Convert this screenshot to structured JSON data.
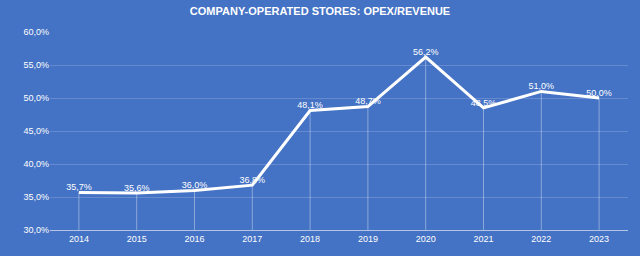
{
  "chart_data": {
    "type": "line",
    "title": "COMPANY-OPERATED STORES: OPEX/REVENUE",
    "categories": [
      "2014",
      "2015",
      "2016",
      "2017",
      "2018",
      "2019",
      "2020",
      "2021",
      "2022",
      "2023"
    ],
    "values": [
      35.7,
      35.6,
      36.0,
      36.8,
      48.1,
      48.7,
      56.2,
      48.5,
      51.0,
      50.0
    ],
    "value_labels": [
      "35,7%",
      "35,6%",
      "36,0%",
      "36,8%",
      "48,1%",
      "48,7%",
      "56,2%",
      "48,5%",
      "51,0%",
      "50,0%"
    ],
    "color": "#ffffff",
    "ylim": [
      30,
      60
    ],
    "yticks": [
      {
        "value": 30,
        "label": "30,0%"
      },
      {
        "value": 35,
        "label": "35,0%"
      },
      {
        "value": 40,
        "label": "40,0%"
      },
      {
        "value": 45,
        "label": "45,0%"
      },
      {
        "value": 50,
        "label": "50,0%"
      },
      {
        "value": 55,
        "label": "55,0%"
      },
      {
        "value": 60,
        "label": "60,0%"
      }
    ],
    "grid": true,
    "data_labels": true
  }
}
